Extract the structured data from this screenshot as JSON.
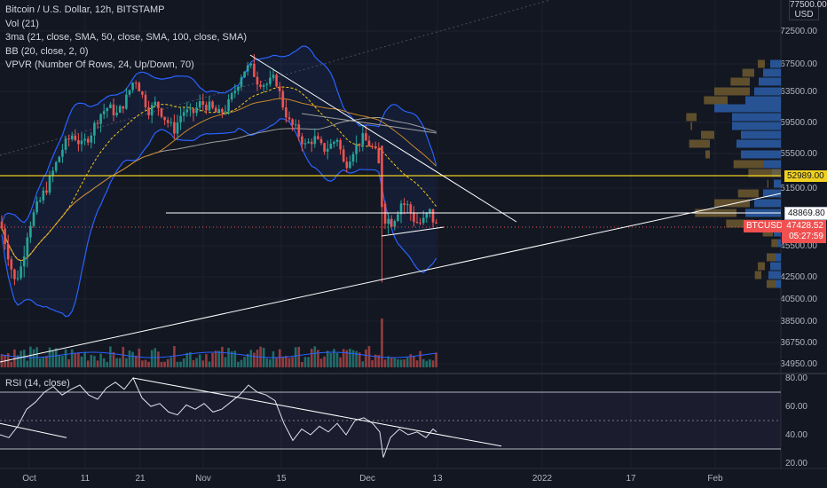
{
  "legend": {
    "title": "Bitcoin / U.S. Dollar, 12h, BITSTAMP",
    "vol": "Vol (21)",
    "ma": "3ma (21, close, SMA, 50, close, SMA, 100, close, SMA)",
    "bb": "BB (20, close, 2, 0)",
    "vpvr": "VPVR (Number Of Rows, 24, Up/Down, 70)"
  },
  "rsi_label": "RSI (14, close)",
  "currency": {
    "top_value": "77500.00",
    "unit": "USD"
  },
  "tags": {
    "level_yellow": "52989.00",
    "level_white": "48869.80",
    "symbol": "BTCUSD",
    "last_price": "47428.52",
    "countdown": "05:27:59"
  },
  "colors": {
    "background": "#131722",
    "up": "#26a69a",
    "down": "#ef5350",
    "bb": "#2962ff",
    "ma21": "#f5c518",
    "ma50": "#c8862a",
    "ma100": "#9e9e9e",
    "level": "#f0d020",
    "rsi": "#e0e3eb"
  },
  "chart_data": {
    "type": "candlestick",
    "price_axis": {
      "ticks": [
        "72500.00",
        "67500.00",
        "63500.00",
        "59500.00",
        "55500.00",
        "51500.00",
        "45500.00",
        "42500.00",
        "40500.00",
        "38500.00",
        "36750.00",
        "34950.00"
      ],
      "ylim": [
        34000,
        77500
      ]
    },
    "time_axis": [
      "Oct",
      "11",
      "21",
      "Nov",
      "15",
      "Dec",
      "13",
      "2022",
      "17",
      "Feb"
    ],
    "rsi_axis": {
      "ticks": [
        "80.00",
        "60.00",
        "40.00",
        "20.00"
      ],
      "ylim": [
        20,
        80
      ],
      "band": [
        30,
        70
      ]
    },
    "horizontal_levels": [
      52989.0,
      48869.8
    ],
    "last_price": 47428.52,
    "price_path_anchors": [
      [
        0,
        48000
      ],
      [
        10,
        44500
      ],
      [
        16,
        42000
      ],
      [
        24,
        43500
      ],
      [
        32,
        47500
      ],
      [
        42,
        49500
      ],
      [
        52,
        51500
      ],
      [
        62,
        54000
      ],
      [
        72,
        56500
      ],
      [
        82,
        58000
      ],
      [
        92,
        56500
      ],
      [
        102,
        58000
      ],
      [
        112,
        60500
      ],
      [
        122,
        61500
      ],
      [
        132,
        60500
      ],
      [
        142,
        62500
      ],
      [
        152,
        65500
      ],
      [
        160,
        63000
      ],
      [
        168,
        61000
      ],
      [
        176,
        62000
      ],
      [
        186,
        60000
      ],
      [
        196,
        58500
      ],
      [
        206,
        61000
      ],
      [
        216,
        60500
      ],
      [
        226,
        62000
      ],
      [
        236,
        61500
      ],
      [
        246,
        60500
      ],
      [
        256,
        61500
      ],
      [
        266,
        64000
      ],
      [
        274,
        66500
      ],
      [
        282,
        67200
      ],
      [
        290,
        65000
      ],
      [
        300,
        64500
      ],
      [
        310,
        65500
      ],
      [
        318,
        62000
      ],
      [
        326,
        59500
      ],
      [
        334,
        58500
      ],
      [
        344,
        56500
      ],
      [
        354,
        57500
      ],
      [
        364,
        56000
      ],
      [
        372,
        56500
      ],
      [
        380,
        57500
      ],
      [
        388,
        54000
      ],
      [
        398,
        56000
      ],
      [
        408,
        57500
      ],
      [
        418,
        56500
      ],
      [
        426,
        55000
      ],
      [
        432,
        48500
      ],
      [
        442,
        48000
      ],
      [
        452,
        50000
      ],
      [
        460,
        49500
      ],
      [
        468,
        48000
      ],
      [
        476,
        47800
      ],
      [
        484,
        49000
      ],
      [
        492,
        47400
      ]
    ],
    "price_extremes": {
      "high": 69000,
      "flash_low": 42000
    },
    "volume_scale": 1.0,
    "rsi_anchors": [
      [
        0,
        40
      ],
      [
        10,
        38
      ],
      [
        20,
        46
      ],
      [
        30,
        58
      ],
      [
        40,
        63
      ],
      [
        50,
        70
      ],
      [
        60,
        74
      ],
      [
        70,
        68
      ],
      [
        80,
        72
      ],
      [
        90,
        75
      ],
      [
        100,
        68
      ],
      [
        110,
        65
      ],
      [
        120,
        73
      ],
      [
        130,
        77
      ],
      [
        140,
        72
      ],
      [
        150,
        80
      ],
      [
        160,
        66
      ],
      [
        170,
        60
      ],
      [
        180,
        62
      ],
      [
        190,
        56
      ],
      [
        200,
        54
      ],
      [
        210,
        61
      ],
      [
        220,
        58
      ],
      [
        230,
        62
      ],
      [
        240,
        56
      ],
      [
        250,
        58
      ],
      [
        260,
        63
      ],
      [
        270,
        68
      ],
      [
        280,
        75
      ],
      [
        290,
        70
      ],
      [
        300,
        68
      ],
      [
        310,
        64
      ],
      [
        320,
        48
      ],
      [
        330,
        36
      ],
      [
        340,
        44
      ],
      [
        350,
        40
      ],
      [
        360,
        46
      ],
      [
        370,
        42
      ],
      [
        380,
        48
      ],
      [
        390,
        40
      ],
      [
        400,
        50
      ],
      [
        410,
        52
      ],
      [
        420,
        48
      ],
      [
        428,
        42
      ],
      [
        432,
        24
      ],
      [
        440,
        38
      ],
      [
        450,
        44
      ],
      [
        460,
        40
      ],
      [
        470,
        42
      ],
      [
        480,
        38
      ],
      [
        488,
        44
      ],
      [
        492,
        42
      ]
    ],
    "series": [
      {
        "name": "BTCUSD"
      },
      {
        "name": "Vol"
      },
      {
        "name": "RSI"
      }
    ]
  }
}
